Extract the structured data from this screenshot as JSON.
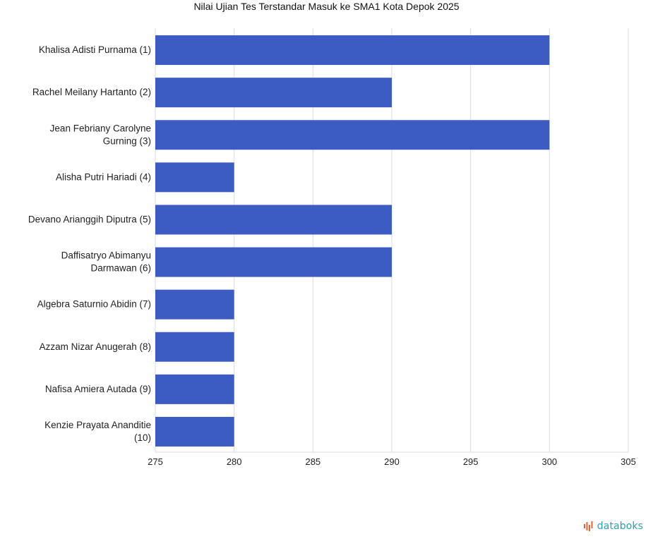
{
  "chart_data": {
    "type": "bar",
    "orientation": "horizontal",
    "title": "Nilai Ujian Tes Terstandar Masuk ke SMA1 Kota Depok 2025",
    "categories": [
      "Khalisa Adisti Purnama (1)",
      "Rachel Meilany Hartanto (2)",
      "Jean Febriany Carolyne Gurning (3)",
      "Alisha Putri Hariadi (4)",
      "Devano Arianggih Diputra (5)",
      "Daffisatryo Abimanyu Darmawan (6)",
      "Algebra Saturnio Abidin (7)",
      "Azzam Nizar Anugerah (8)",
      "Nafisa Amiera Autada (9)",
      "Kenzie Prayata Ananditie (10)"
    ],
    "values": [
      300,
      290,
      300,
      280,
      290,
      290,
      280,
      280,
      280,
      280
    ],
    "xlim": [
      275,
      305
    ],
    "xticks": [
      275,
      280,
      285,
      290,
      295,
      300,
      305
    ],
    "grid": true,
    "bar_color": "#3c5cc4"
  },
  "brand": {
    "name": "databoks"
  }
}
